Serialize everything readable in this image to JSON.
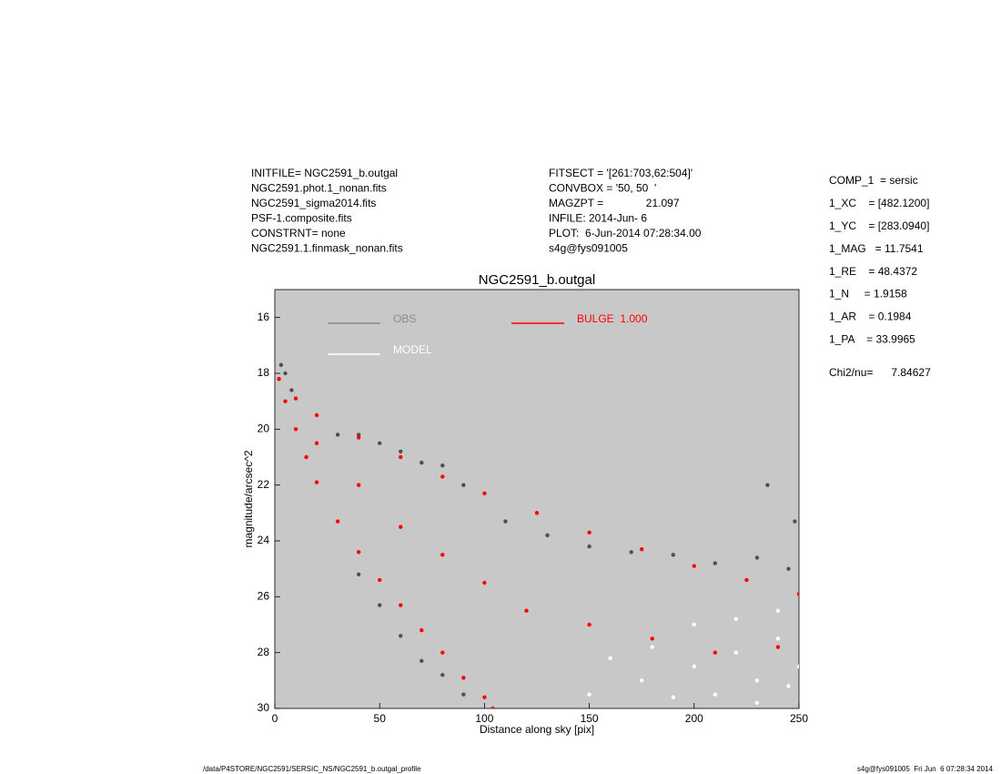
{
  "chart_data": {
    "type": "scatter",
    "title": "NGC2591_b.outgal",
    "x_label": "Distance along sky [pix]",
    "y_label": "magnitude/arcsec^2",
    "xlim": [
      0,
      250
    ],
    "ylim": [
      30,
      15
    ],
    "xticks": [
      0,
      50,
      100,
      150,
      200,
      250
    ],
    "yticks": [
      16,
      18,
      20,
      22,
      24,
      26,
      28,
      30
    ],
    "background": "#c8c8c8",
    "series": [
      {
        "name": "OBS",
        "color": "#505050",
        "legend_color": "#8c8c8c",
        "x": [
          3,
          5,
          8,
          30,
          40,
          50,
          60,
          70,
          80,
          90,
          110,
          130,
          150,
          170,
          190,
          210,
          230,
          245,
          40,
          50,
          60,
          70,
          80,
          90,
          235,
          248
        ],
        "y": [
          17.7,
          18.0,
          18.6,
          20.2,
          20.2,
          20.5,
          20.8,
          21.2,
          21.3,
          22.0,
          23.3,
          23.8,
          24.2,
          24.4,
          24.5,
          24.8,
          24.6,
          25.0,
          25.2,
          26.3,
          27.4,
          28.3,
          28.8,
          29.5,
          22.0,
          23.3
        ]
      },
      {
        "name": "MODEL",
        "color": "#ffffff",
        "legend_color": "#ffffff",
        "x": [
          150,
          175,
          200,
          210,
          220,
          230,
          240,
          250,
          180,
          200,
          220,
          240,
          160,
          190,
          230,
          245
        ],
        "y": [
          29.5,
          29.0,
          28.5,
          29.5,
          28.0,
          29.0,
          27.5,
          28.5,
          27.8,
          27.0,
          26.8,
          26.5,
          28.2,
          29.6,
          29.8,
          29.2
        ]
      },
      {
        "name": "BULGE  1.000",
        "color": "#ff0000",
        "legend_color": "#ff0000",
        "x": [
          2,
          10,
          20,
          40,
          60,
          80,
          100,
          125,
          150,
          175,
          200,
          225,
          250,
          5,
          10,
          15,
          20,
          30,
          40,
          50,
          60,
          70,
          80,
          90,
          100,
          104,
          20,
          40,
          60,
          80,
          100,
          120,
          150,
          180,
          210,
          240
        ],
        "y": [
          18.2,
          18.9,
          19.5,
          20.3,
          21.0,
          21.7,
          22.3,
          23.0,
          23.7,
          24.3,
          24.9,
          25.4,
          25.9,
          19.0,
          20.0,
          21.0,
          21.9,
          23.3,
          24.4,
          25.4,
          26.3,
          27.2,
          28.0,
          28.9,
          29.6,
          30.0,
          20.5,
          22.0,
          23.5,
          24.5,
          25.5,
          26.5,
          27.0,
          27.5,
          28.0,
          27.8
        ]
      }
    ],
    "annotations": {
      "left": [
        "INITFILE= NGC2591_b.outgal",
        "NGC2591.phot.1_nonan.fits",
        "NGC2591_sigma2014.fits",
        "PSF-1.composite.fits",
        "CONSTRNT= none",
        "NGC2591.1.finmask_nonan.fits"
      ],
      "middle": [
        "FITSECT = '[261:703,62:504]'",
        "CONVBOX = '50, 50  '",
        "MAGZPT =              21.097",
        "INFILE: 2014-Jun- 6",
        "PLOT:  6-Jun-2014 07:28:34.00",
        "s4g@fys091005"
      ],
      "right": [
        "COMP_1  = sersic",
        "1_XC    = [482.1200]",
        "1_YC    = [283.0940]",
        "1_MAG   = 11.7541",
        "1_RE    = 48.4372",
        "1_N     = 1.9158",
        "1_AR    = 0.1984",
        "1_PA    = 33.9965"
      ],
      "chi2": "Chi2/nu=      7.84627",
      "footer_left": "/data/P4STORE/NGC2591/SERSIC_NS/NGC2591_b.outgal_profile",
      "footer_right": "s4g@fys091005  Fri Jun  6 07:28:34 2014"
    }
  }
}
